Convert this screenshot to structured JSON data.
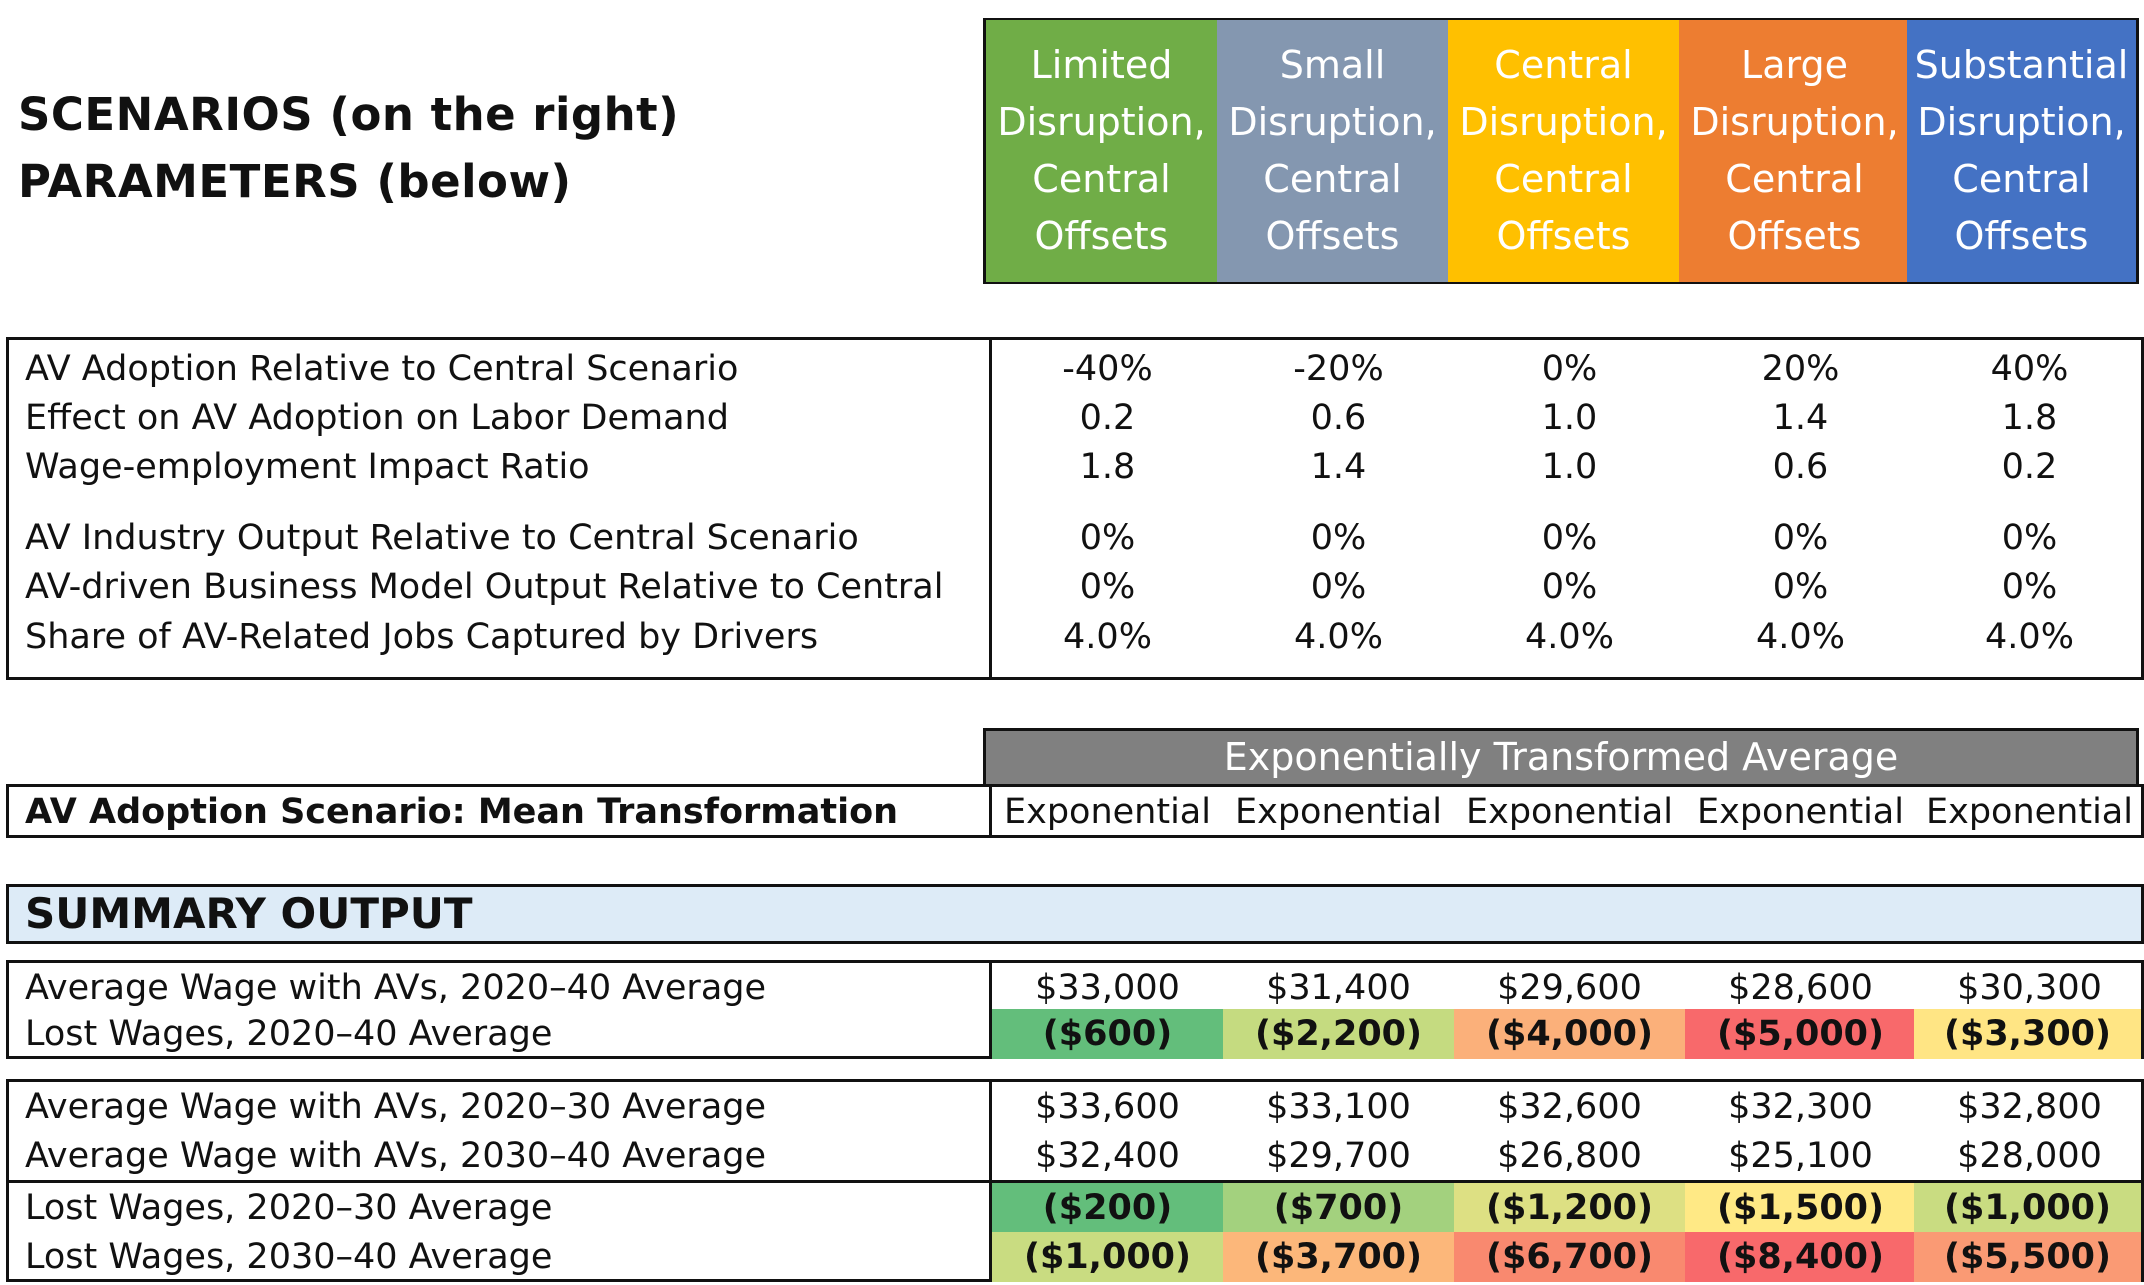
{
  "title": {
    "line1": "SCENARIOS (on the right)",
    "line2": "PARAMETERS (below)"
  },
  "scenarios": [
    {
      "label": "Limited\nDisruption,\nCentral\nOffsets",
      "color": "#70AD47"
    },
    {
      "label": "Small\nDisruption,\nCentral\nOffsets",
      "color": "#8497B0"
    },
    {
      "label": "Central\nDisruption,\nCentral\nOffsets",
      "color": "#FFC000"
    },
    {
      "label": "Large\nDisruption,\nCentral\nOffsets",
      "color": "#ED7D31"
    },
    {
      "label": "Substantial\nDisruption,\nCentral\nOffsets",
      "color": "#4472C4"
    }
  ],
  "parameters": {
    "rows": [
      {
        "label": "AV Adoption Relative to Central Scenario",
        "values": [
          "-40%",
          "-20%",
          "0%",
          "20%",
          "40%"
        ]
      },
      {
        "label": "Effect on AV Adoption on Labor Demand",
        "values": [
          "0.2",
          "0.6",
          "1.0",
          "1.4",
          "1.8"
        ]
      },
      {
        "label": "Wage-employment Impact Ratio",
        "values": [
          "1.8",
          "1.4",
          "1.0",
          "0.6",
          "0.2"
        ]
      },
      {
        "label": "AV Industry Output Relative to Central Scenario",
        "values": [
          "0%",
          "0%",
          "0%",
          "0%",
          "0%"
        ]
      },
      {
        "label": "AV-driven Business Model Output Relative to Central",
        "values": [
          "0%",
          "0%",
          "0%",
          "0%",
          "0%"
        ]
      },
      {
        "label": "Share of AV-Related Jobs Captured by Drivers",
        "values": [
          "4.0%",
          "4.0%",
          "4.0%",
          "4.0%",
          "4.0%"
        ]
      }
    ]
  },
  "transformation": {
    "banner": "Exponentially Transformed Average",
    "banner_color": "#808080",
    "label": "AV Adoption Scenario: Mean Transformation",
    "values": [
      "Exponential",
      "Exponential",
      "Exponential",
      "Exponential",
      "Exponential"
    ]
  },
  "summary": {
    "heading": "SUMMARY OUTPUT",
    "heading_color": "#DDEBF7",
    "group1": [
      {
        "label": "Average Wage with AVs, 2020–40 Average",
        "values": [
          "$33,000",
          "$31,400",
          "$29,600",
          "$28,600",
          "$30,300"
        ]
      },
      {
        "label": "Lost Wages, 2020–40 Average",
        "values": [
          "($600)",
          "($2,200)",
          "($4,000)",
          "($5,000)",
          "($3,300)"
        ],
        "colors": [
          "#63BE7B",
          "#C5DB80",
          "#FBB07A",
          "#F8696B",
          "#FFE584"
        ]
      }
    ],
    "group2": [
      {
        "label": "Average Wage with AVs, 2020–30 Average",
        "values": [
          "$33,600",
          "$33,100",
          "$32,600",
          "$32,300",
          "$32,800"
        ]
      },
      {
        "label": "Average Wage with AVs, 2030–40 Average",
        "values": [
          "$32,400",
          "$29,700",
          "$26,800",
          "$25,100",
          "$28,000"
        ]
      }
    ],
    "group3": [
      {
        "label": "Lost Wages, 2020–30 Average",
        "values": [
          "($200)",
          "($700)",
          "($1,200)",
          "($1,500)",
          "($1,000)"
        ],
        "colors": [
          "#63BE7B",
          "#A3D17E",
          "#DDE083",
          "#FFE985",
          "#C9DC81"
        ]
      },
      {
        "label": "Lost Wages, 2030–40 Average",
        "values": [
          "($1,000)",
          "($3,700)",
          "($6,700)",
          "($8,400)",
          "($5,500)"
        ],
        "colors": [
          "#C9DC81",
          "#FCB77A",
          "#F9896F",
          "#F8696B",
          "#FA9A74"
        ]
      }
    ]
  }
}
